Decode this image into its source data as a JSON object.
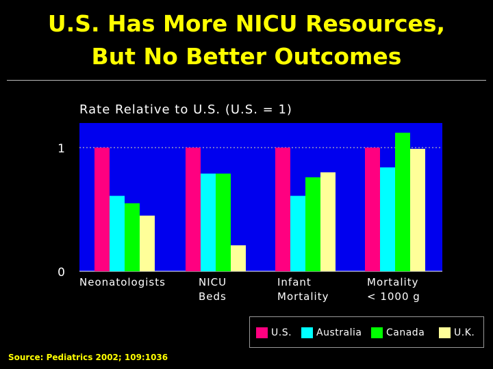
{
  "slide": {
    "title_line1": "U.S. Has More NICU Resources,",
    "title_line2": "But No Better Outcomes",
    "source": "Source: Pediatrics 2002; 109:1036"
  },
  "colors": {
    "background": "#000000",
    "plot_area": "#0000ee",
    "title": "#ffff00",
    "reference_line": "#b8b8b8"
  },
  "chart_data": {
    "type": "bar",
    "title": "Rate Relative to U.S. (U.S. = 1)",
    "xlabel": "",
    "ylabel": "",
    "ylim": [
      0,
      1.2
    ],
    "yticks": [
      "0",
      "1"
    ],
    "reference_line": 1,
    "grid": false,
    "legend_position": "bottom-right",
    "categories": [
      [
        "Neonatologists"
      ],
      [
        "NICU",
        "Beds"
      ],
      [
        "Infant",
        "Mortality"
      ],
      [
        "Mortality",
        "< 1000 g"
      ]
    ],
    "series": [
      {
        "name": "U.S.",
        "color": "#ff0080",
        "values": [
          1.0,
          1.0,
          1.0,
          1.0
        ]
      },
      {
        "name": "Australia",
        "color": "#00ffff",
        "values": [
          0.61,
          0.79,
          0.61,
          0.84
        ]
      },
      {
        "name": "Canada",
        "color": "#00ff00",
        "values": [
          0.55,
          0.79,
          0.76,
          1.12
        ]
      },
      {
        "name": "U.K.",
        "color": "#ffff99",
        "values": [
          0.45,
          0.21,
          0.8,
          0.99
        ]
      }
    ]
  }
}
